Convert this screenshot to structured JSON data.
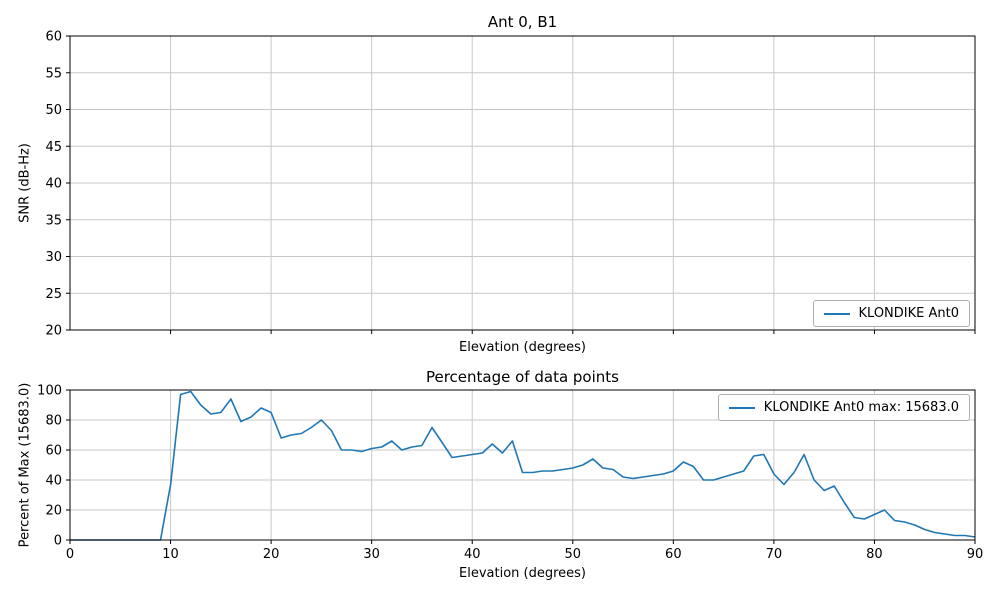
{
  "figure": {
    "background": "#ffffff",
    "accent_color": "#1f77b4",
    "grid_color": "#c8c8c8"
  },
  "chart_data": [
    {
      "type": "line",
      "title": "Ant 0, B1",
      "xlabel": "Elevation (degrees)",
      "ylabel": "SNR (dB-Hz)",
      "xlim": [
        0,
        90
      ],
      "ylim": [
        20,
        60
      ],
      "xticks": [
        10,
        20,
        30,
        40,
        50,
        60,
        70,
        80,
        90
      ],
      "show_xtick_labels": false,
      "yticks": [
        20,
        25,
        30,
        35,
        40,
        45,
        50,
        55,
        60
      ],
      "grid": true,
      "legend": {
        "position": "lower right",
        "entries": [
          {
            "label": "KLONDIKE Ant0",
            "color": "#1f77b4"
          }
        ]
      },
      "series": [
        {
          "name": "KLONDIKE Ant0",
          "color": "#1f77b4",
          "x": [],
          "values": []
        }
      ]
    },
    {
      "type": "line",
      "title": "Percentage of data points",
      "xlabel": "Elevation (degrees)",
      "ylabel": "Percent of Max (15683.0)",
      "max_value": "15683.0",
      "xlim": [
        0,
        90
      ],
      "ylim": [
        0,
        100
      ],
      "xticks": [
        0,
        10,
        20,
        30,
        40,
        50,
        60,
        70,
        80,
        90
      ],
      "show_xtick_labels": true,
      "yticks": [
        0,
        20,
        40,
        60,
        80,
        100
      ],
      "grid": true,
      "legend": {
        "position": "upper right",
        "entries": [
          {
            "label": "KLONDIKE Ant0 max: 15683.0",
            "color": "#1f77b4"
          }
        ]
      },
      "series": [
        {
          "name": "KLONDIKE Ant0",
          "color": "#1f77b4",
          "x": [
            0,
            1,
            2,
            3,
            4,
            5,
            6,
            7,
            8,
            9,
            10,
            11,
            12,
            13,
            14,
            15,
            16,
            17,
            18,
            19,
            20,
            21,
            22,
            23,
            24,
            25,
            26,
            27,
            28,
            29,
            30,
            31,
            32,
            33,
            34,
            35,
            36,
            37,
            38,
            39,
            40,
            41,
            42,
            43,
            44,
            45,
            46,
            47,
            48,
            49,
            50,
            51,
            52,
            53,
            54,
            55,
            56,
            57,
            58,
            59,
            60,
            61,
            62,
            63,
            64,
            65,
            66,
            67,
            68,
            69,
            70,
            71,
            72,
            73,
            74,
            75,
            76,
            77,
            78,
            79,
            80,
            81,
            82,
            83,
            84,
            85,
            86,
            87,
            88,
            89,
            90
          ],
          "values": [
            0,
            0,
            0,
            0,
            0,
            0,
            0,
            0,
            0,
            0,
            37,
            97,
            99,
            90,
            84,
            85,
            94,
            79,
            82,
            88,
            85,
            68,
            70,
            71,
            75,
            80,
            73,
            60,
            60,
            59,
            61,
            62,
            66,
            60,
            62,
            63,
            75,
            65,
            55,
            56,
            57,
            58,
            64,
            58,
            66,
            45,
            45,
            46,
            46,
            47,
            48,
            50,
            54,
            48,
            47,
            42,
            41,
            42,
            43,
            44,
            46,
            52,
            49,
            40,
            40,
            42,
            44,
            46,
            56,
            57,
            44,
            37,
            45,
            57,
            40,
            33,
            36,
            25,
            15,
            14,
            17,
            20,
            13,
            12,
            10,
            7,
            5,
            4,
            3,
            3,
            2
          ]
        }
      ]
    }
  ]
}
